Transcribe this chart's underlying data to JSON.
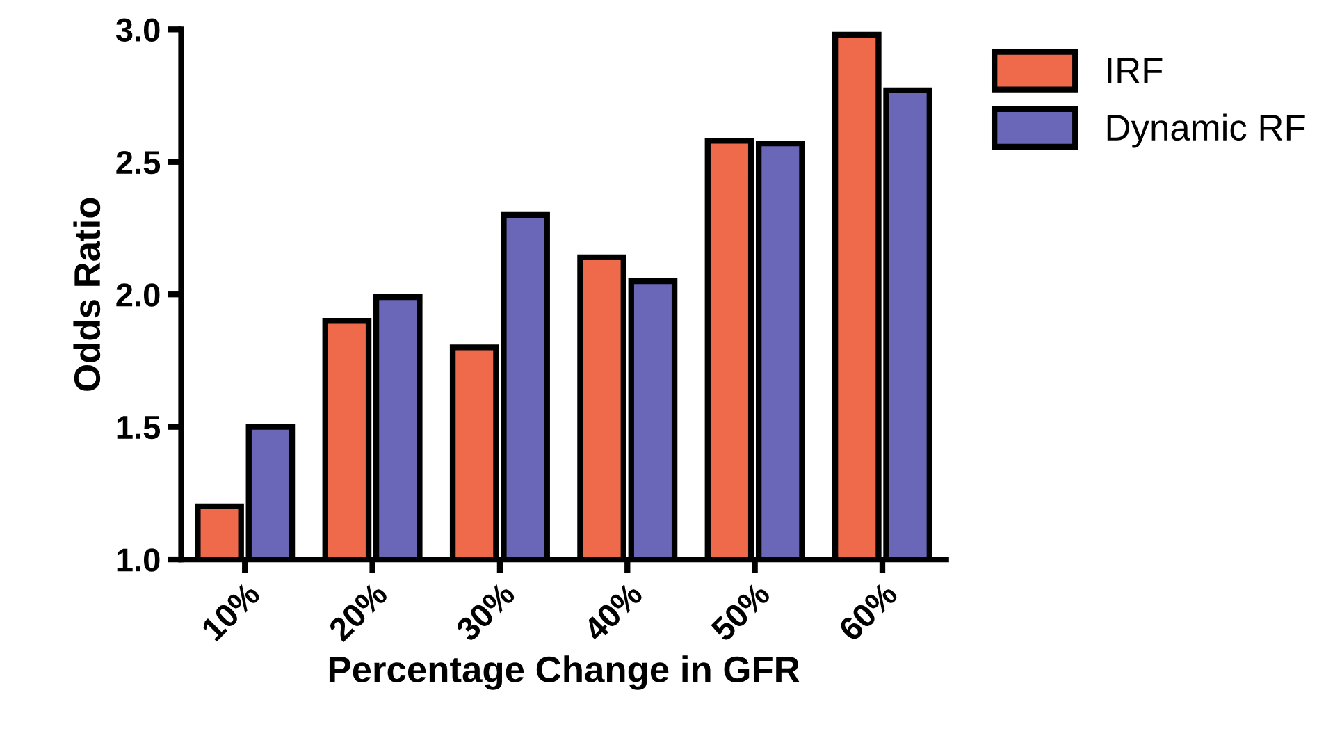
{
  "chart_data": {
    "type": "bar",
    "xlabel": "Percentage Change in GFR",
    "ylabel": "Odds Ratio",
    "categories": [
      "10%",
      "20%",
      "30%",
      "40%",
      "50%",
      "60%"
    ],
    "series": [
      {
        "name": "IRF",
        "color": "#ee6a4b",
        "values": [
          1.2,
          1.9,
          1.8,
          2.14,
          2.58,
          2.98
        ]
      },
      {
        "name": "Dynamic RF",
        "color": "#6a66b8",
        "values": [
          1.5,
          1.99,
          2.3,
          2.05,
          2.57,
          2.77
        ]
      }
    ],
    "ylim": [
      1,
      3
    ],
    "yticks": [
      {
        "value": 1,
        "label": "1.0"
      },
      {
        "value": 1.5,
        "label": "1.5"
      },
      {
        "value": 2,
        "label": "2.0"
      },
      {
        "value": 2.5,
        "label": "2.5"
      },
      {
        "value": 3,
        "label": "3.0"
      }
    ],
    "grid": false,
    "legend": "top right"
  }
}
